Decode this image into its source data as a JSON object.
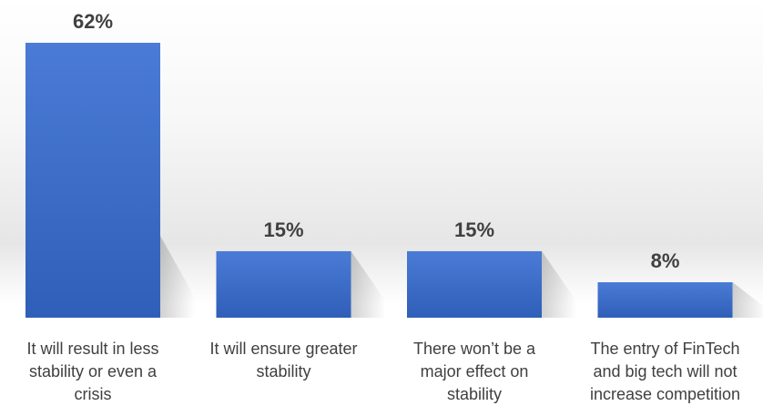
{
  "colors": {
    "bar_top": "#4a7bd6",
    "bar_bottom": "#2f5fb8",
    "text": "#404040"
  },
  "chart_data": {
    "type": "bar",
    "title": "",
    "xlabel": "",
    "ylabel": "",
    "ylim": [
      0,
      62
    ],
    "grid": false,
    "legend": "none",
    "categories": [
      "It will result in less stability or even a crisis",
      "It will ensure greater stability",
      "There won’t be a major effect on stability",
      "The entry of FinTech and big tech will not increase competition"
    ],
    "category_lines": [
      [
        "It will result in less",
        "stability or even a",
        "crisis"
      ],
      [
        "It will ensure greater",
        "stability"
      ],
      [
        "There won’t be a",
        "major effect on",
        "stability"
      ],
      [
        "The entry of FinTech",
        "and big tech will not",
        "increase competition"
      ]
    ],
    "values": [
      62,
      15,
      15,
      8
    ],
    "data_labels": [
      "62%",
      "15%",
      "15%",
      "8%"
    ]
  }
}
